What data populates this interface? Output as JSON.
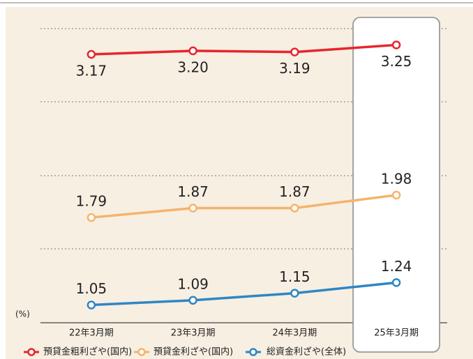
{
  "chart_data": {
    "type": "line",
    "unit_label": "(%)",
    "categories": [
      "22年3月期",
      "23年3月期",
      "24年3月期",
      "25年3月期"
    ],
    "series": [
      {
        "name": "預貸金粗利ざや(国内)",
        "color": "#e6262d",
        "values": [
          3.17,
          3.2,
          3.19,
          3.25
        ],
        "value_labels": [
          "3.17",
          "3.20",
          "3.19",
          "3.25"
        ]
      },
      {
        "name": "預貸金利ざや(国内)",
        "color": "#f6b36b",
        "values": [
          1.79,
          1.87,
          1.87,
          1.98
        ],
        "value_labels": [
          "1.79",
          "1.87",
          "1.87",
          "1.98"
        ]
      },
      {
        "name": "総資金利ざや(全体)",
        "color": "#2f86c4",
        "values": [
          1.05,
          1.09,
          1.15,
          1.24
        ],
        "value_labels": [
          "1.05",
          "1.09",
          "1.15",
          "1.24"
        ]
      }
    ],
    "ylim": [
      0.9,
      3.4
    ],
    "highlight_category": 3
  }
}
